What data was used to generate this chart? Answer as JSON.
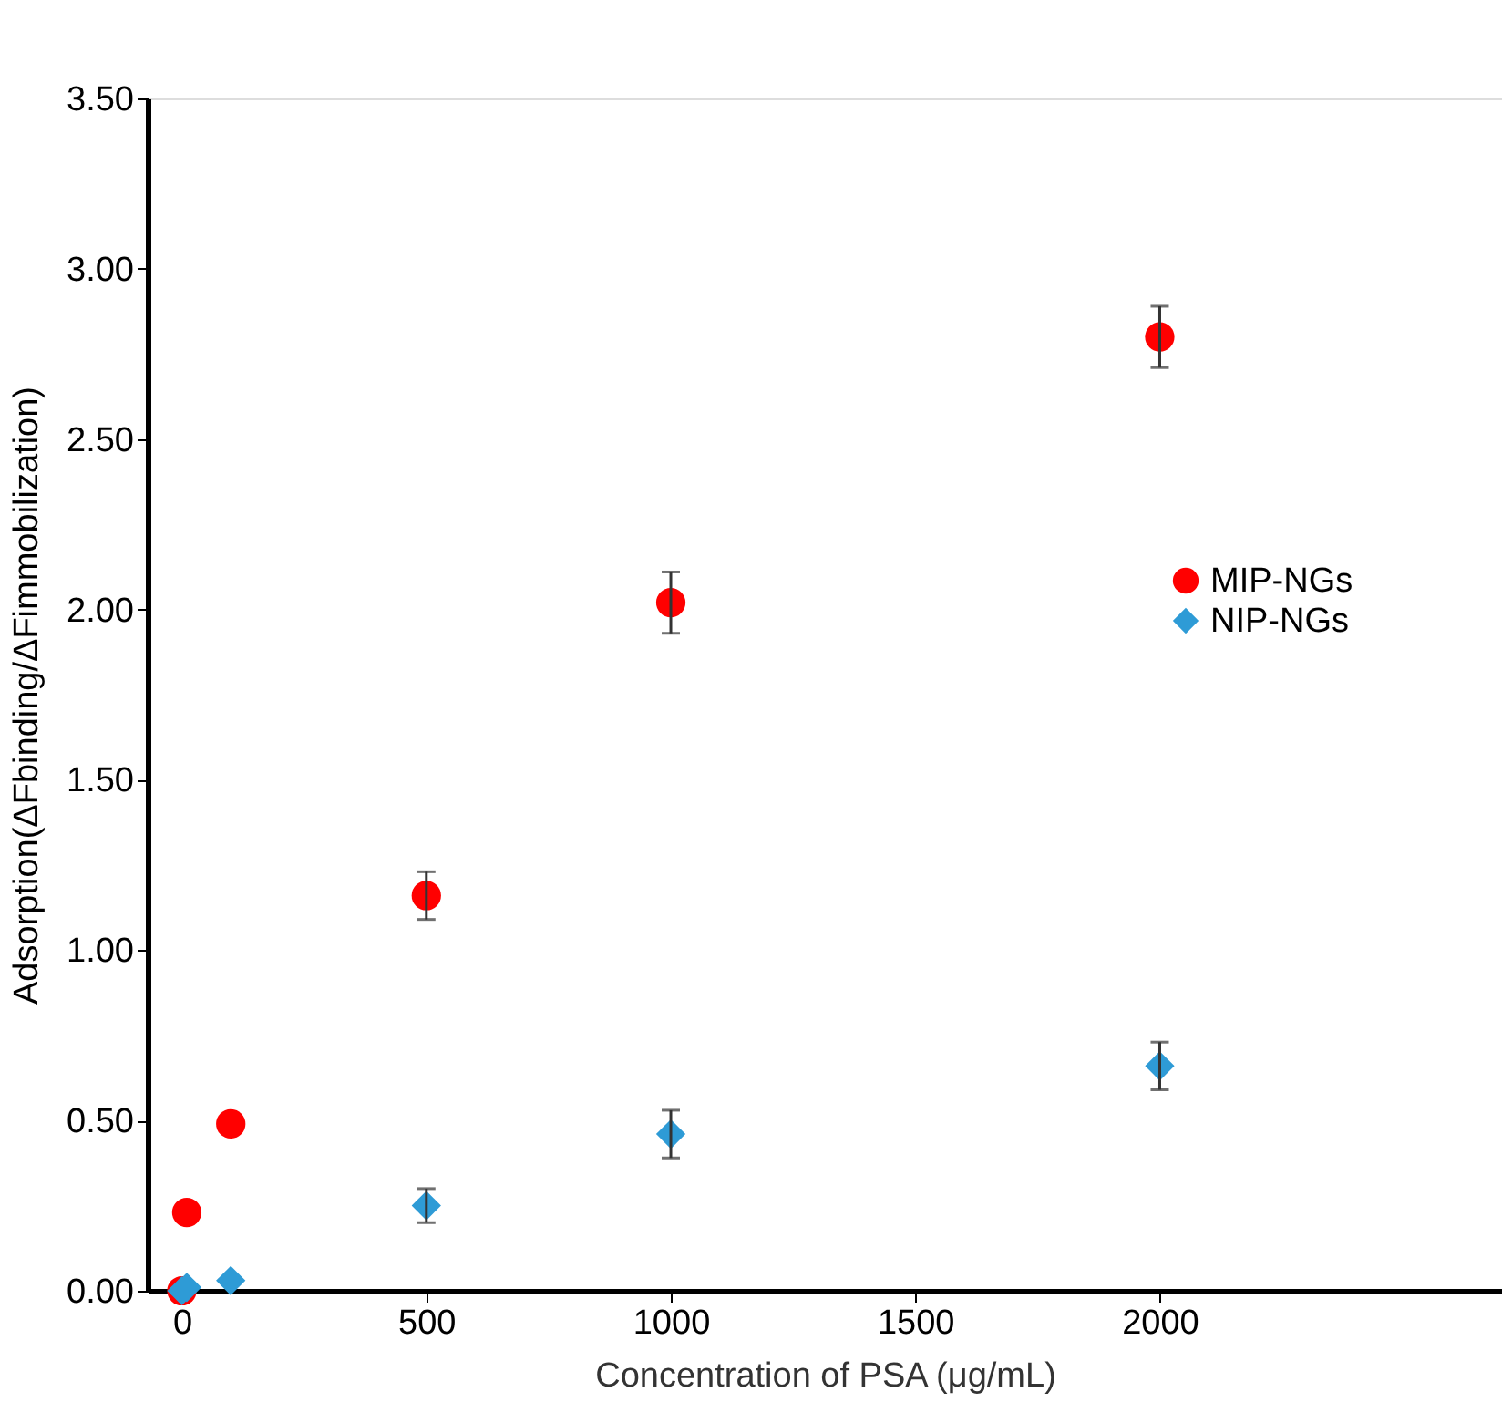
{
  "chart_data": {
    "type": "scatter",
    "xlabel": "Concentration of PSA (μg/mL)",
    "ylabel": "Adsorption(ΔFbinding/ΔFimmobilization)",
    "xlim": [
      -70,
      2700
    ],
    "xticks": [
      0,
      500,
      1000,
      1500,
      2000
    ],
    "ylim": [
      0,
      3.5
    ],
    "yticks": [
      {
        "value": 0,
        "label": "0.00"
      },
      {
        "value": 0.5,
        "label": "0.50"
      },
      {
        "value": 1,
        "label": "1.00"
      },
      {
        "value": 1.5,
        "label": "1.50"
      },
      {
        "value": 2,
        "label": "2.00"
      },
      {
        "value": 2.5,
        "label": "2.50"
      },
      {
        "value": 3,
        "label": "3.00"
      },
      {
        "value": 3.5,
        "label": "3.50"
      }
    ],
    "grid": false,
    "legend": "right",
    "series": [
      {
        "name": "MIP-NGs",
        "color": "#ff0000",
        "marker": "circle",
        "x": [
          0,
          10,
          100,
          500,
          1000,
          2000
        ],
        "values": [
          0,
          0.23,
          0.49,
          1.16,
          2.02,
          2.8
        ],
        "errors": [
          null,
          null,
          null,
          0.07,
          0.09,
          0.09
        ]
      },
      {
        "name": "NIP-NGs",
        "color": "#2e9bd6",
        "marker": "diamond",
        "x": [
          0,
          10,
          100,
          500,
          1000,
          2000
        ],
        "values": [
          0,
          0.01,
          0.03,
          0.25,
          0.46,
          0.66
        ],
        "errors": [
          null,
          null,
          null,
          0.05,
          0.07,
          0.07
        ]
      }
    ]
  }
}
